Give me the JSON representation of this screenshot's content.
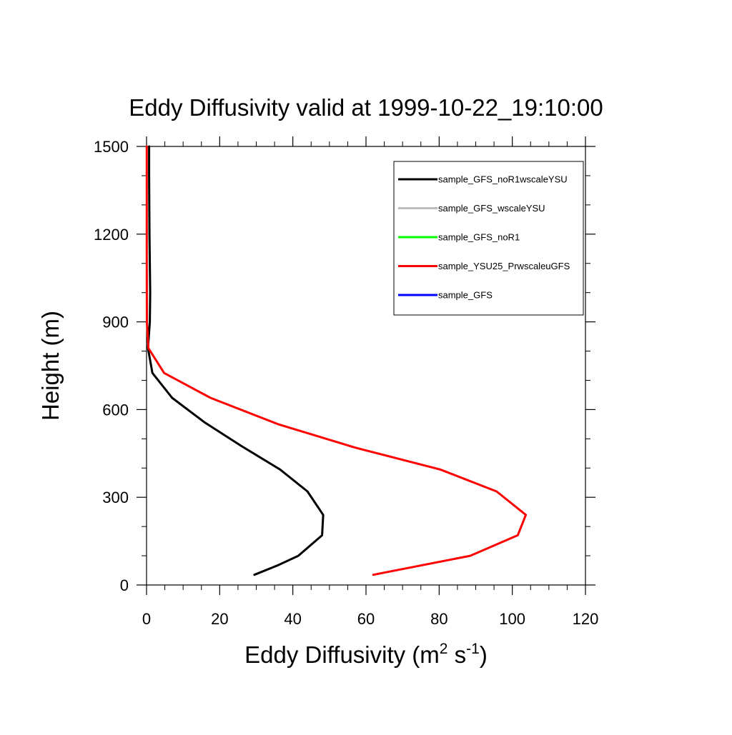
{
  "chart_data": {
    "type": "line",
    "title": "Eddy Diffusivity valid at 1999-10-22_19:10:00",
    "xlabel": {
      "base": "Eddy Diffusivity (m",
      "sup1": "2",
      "mid": " s",
      "sup2": "-1",
      "end": ")"
    },
    "ylabel": "Height (m)",
    "xlim": [
      0,
      120
    ],
    "ylim": [
      0,
      1500
    ],
    "xticks": [
      0,
      20,
      40,
      60,
      80,
      100,
      120
    ],
    "yticks": [
      0,
      300,
      600,
      900,
      1200,
      1500
    ],
    "x_minor_step": 5,
    "y_minor_step": 100,
    "grid": false,
    "legend_position": "top-right",
    "series": [
      {
        "name": "sample_GFS_noR1wscaleYSU",
        "color": "#000000",
        "points": [
          [
            29.5,
            35
          ],
          [
            36,
            68
          ],
          [
            41.5,
            100
          ],
          [
            48,
            170
          ],
          [
            48.3,
            240
          ],
          [
            44,
            320
          ],
          [
            36.5,
            395
          ],
          [
            26,
            475
          ],
          [
            16,
            555
          ],
          [
            7,
            640
          ],
          [
            1.6,
            725
          ],
          [
            0.4,
            810
          ],
          [
            0.9,
            900
          ],
          [
            1.0,
            1000
          ],
          [
            0.8,
            1200
          ],
          [
            0.7,
            1400
          ],
          [
            0.7,
            1500
          ]
        ]
      },
      {
        "name": "sample_GFS_wscaleYSU",
        "color": "#bebebe",
        "points": []
      },
      {
        "name": "sample_GFS_noR1",
        "color": "#00ff00",
        "points": []
      },
      {
        "name": "sample_YSU25_PrwscaleuGFS",
        "color": "#ff0000",
        "points": [
          [
            62,
            35
          ],
          [
            88.5,
            100
          ],
          [
            101.5,
            170
          ],
          [
            103.7,
            240
          ],
          [
            95.7,
            320
          ],
          [
            80.3,
            395
          ],
          [
            57,
            470
          ],
          [
            36,
            550
          ],
          [
            17.5,
            640
          ],
          [
            4.8,
            725
          ],
          [
            0.5,
            810
          ],
          [
            0.1,
            900
          ],
          [
            0.05,
            1100
          ],
          [
            0.05,
            1300
          ],
          [
            0.05,
            1500
          ]
        ]
      },
      {
        "name": "sample_GFS",
        "color": "#0000ff",
        "points": []
      }
    ]
  }
}
